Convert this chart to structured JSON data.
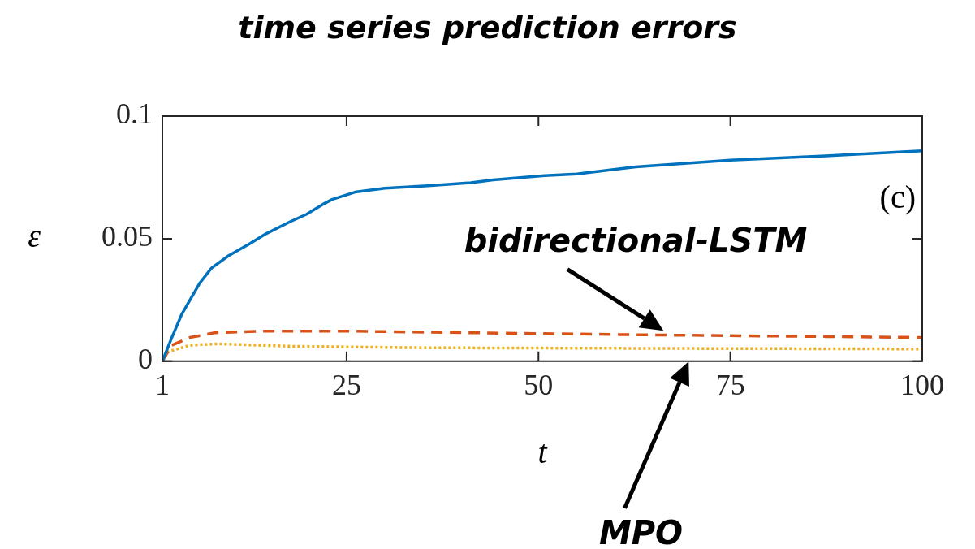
{
  "chart_data": {
    "type": "line",
    "title": "time series prediction errors",
    "xlabel": "t",
    "ylabel": "ε",
    "xlim": [
      1,
      100
    ],
    "xticks": [
      1,
      25,
      50,
      75,
      100
    ],
    "ylim": [
      0,
      0.1
    ],
    "yticks": [
      0,
      0.05,
      0.1
    ],
    "grid": false,
    "legend": false,
    "marker": "none",
    "annotations": [
      "(c)",
      {
        "text": "bidirectional-LSTM",
        "x": 67,
        "y": 0.011
      },
      "MPO"
    ],
    "series": [
      {
        "color": "#0072bd",
        "line_style": "solid",
        "x": [
          1,
          2.2,
          3.5,
          4.6,
          5.9,
          7.4,
          9.6,
          12.4,
          14.5,
          17.7,
          19.8,
          21.9,
          23.1,
          26.1,
          30,
          35.2,
          41.2,
          44.1,
          50.8,
          55,
          62.7,
          75,
          87.4,
          100
        ],
        "values": [
          0,
          0.0094,
          0.019,
          0.025,
          0.032,
          0.038,
          0.043,
          0.048,
          0.052,
          0.057,
          0.06,
          0.064,
          0.066,
          0.069,
          0.0706,
          0.0715,
          0.0728,
          0.074,
          0.0757,
          0.0764,
          0.0793,
          0.082,
          0.0838,
          0.0858
        ]
      },
      {
        "color": "#d95319",
        "line_style": "dashed",
        "x": [
          1,
          2.2,
          4.6,
          7.8,
          14,
          24.7,
          49.4,
          66.3,
          100
        ],
        "values": [
          0,
          0.0065,
          0.0097,
          0.0116,
          0.0123,
          0.0123,
          0.0113,
          0.0107,
          0.0097
        ]
      },
      {
        "color": "#edb120",
        "line_style": "dotted",
        "x": [
          1,
          1.8,
          4.6,
          8.2,
          17.7,
          35,
          69.8,
          100
        ],
        "values": [
          0,
          0.0039,
          0.0065,
          0.0071,
          0.0061,
          0.0055,
          0.0052,
          0.005
        ]
      }
    ]
  }
}
